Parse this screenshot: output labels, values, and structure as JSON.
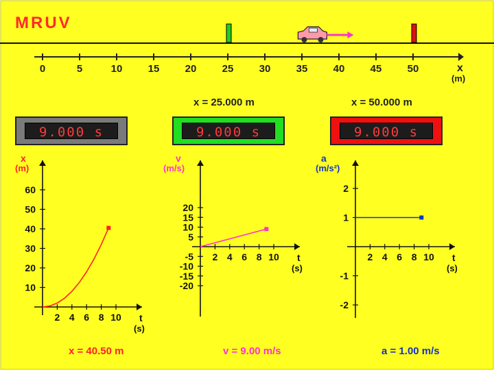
{
  "app": {
    "title": "MRUV"
  },
  "track": {
    "ticks": [
      "0",
      "5",
      "10",
      "15",
      "20",
      "25",
      "30",
      "35",
      "40",
      "45",
      "50"
    ],
    "axis_label": "x",
    "axis_unit": "(m)",
    "marker_green_position": "x = 25.000 m",
    "marker_red_position": "x = 50.000 m",
    "car_position_m": 38
  },
  "timers": [
    {
      "value": "9.000 s",
      "frame": "#7a7a7a"
    },
    {
      "value": "9.000 s",
      "frame": "#22dd22"
    },
    {
      "value": "9.000 s",
      "frame": "#ee1111"
    }
  ],
  "graphs": {
    "position": {
      "ylabel": "x",
      "yunit": "(m)",
      "yticks": [
        "60",
        "50",
        "40",
        "30",
        "20",
        "10"
      ],
      "xticks": [
        "2",
        "4",
        "6",
        "8",
        "10"
      ],
      "xlabel": "t",
      "xunit": "(s)",
      "color": "#ff2222",
      "readout": "x = 40.50 m"
    },
    "velocity": {
      "ylabel": "v",
      "yunit": "(m/s)",
      "yticks": [
        "20",
        "15",
        "10",
        "5",
        "-5",
        "-10",
        "-15",
        "-20"
      ],
      "xticks": [
        "2",
        "4",
        "6",
        "8",
        "10"
      ],
      "xlabel": "t",
      "xunit": "(s)",
      "color": "#ff33cc",
      "readout": "v = 9.00 m/s"
    },
    "acceleration": {
      "ylabel": "a",
      "yunit": "(m/s²)",
      "yticks": [
        "2",
        "1",
        "-1",
        "-2"
      ],
      "xticks": [
        "2",
        "4",
        "6",
        "8",
        "10"
      ],
      "xlabel": "t",
      "xunit": "(s)",
      "color": "#1133cc",
      "readout": "a = 1.00 m/s"
    }
  },
  "chart_data": [
    {
      "type": "line",
      "series": [
        {
          "x": [
            0,
            1,
            2,
            3,
            4,
            5,
            6,
            7,
            8,
            9
          ],
          "values": [
            0,
            0.5,
            2,
            4.5,
            8,
            12.5,
            18,
            24.5,
            32,
            40.5
          ]
        }
      ],
      "xlim": [
        0,
        10
      ],
      "ylim": [
        0,
        60
      ]
    },
    {
      "type": "line",
      "series": [
        {
          "x": [
            0,
            9
          ],
          "values": [
            0,
            9
          ]
        }
      ],
      "xlim": [
        0,
        10
      ],
      "ylim": [
        -20,
        20
      ]
    },
    {
      "type": "line",
      "series": [
        {
          "x": [
            0,
            9
          ],
          "values": [
            1,
            1
          ]
        }
      ],
      "xlim": [
        0,
        10
      ],
      "ylim": [
        -2,
        2
      ]
    }
  ],
  "colors": {
    "background": "#ffff22",
    "title": "#ff2a2a"
  }
}
